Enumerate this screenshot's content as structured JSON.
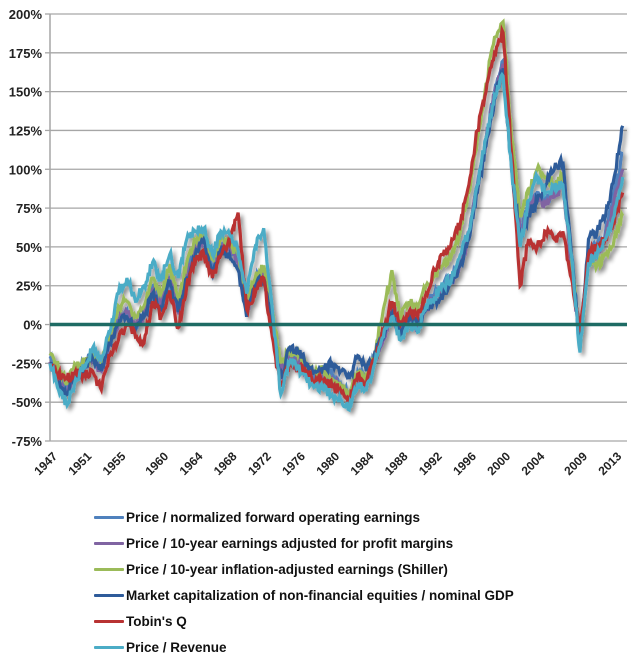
{
  "chart_data": {
    "type": "line",
    "title": "",
    "xlabel": "",
    "ylabel": "",
    "ylim": [
      -75,
      200
    ],
    "xlim": [
      1947,
      2014.5
    ],
    "grid": true,
    "legend_position": "bottom",
    "y_ticks": [
      -75,
      -50,
      -25,
      0,
      25,
      50,
      75,
      100,
      125,
      150,
      175,
      200
    ],
    "y_tick_labels": [
      "-75%",
      "-50%",
      "-25%",
      "0%",
      "25%",
      "50%",
      "75%",
      "100%",
      "125%",
      "150%",
      "175%",
      "200%"
    ],
    "x_tick_labels": [
      "1947",
      "1951",
      "1955",
      "1960",
      "1964",
      "1968",
      "1972",
      "1976",
      "1980",
      "1984",
      "1988",
      "1992",
      "1996",
      "2000",
      "2004",
      "2009",
      "2013"
    ],
    "x_tick_values": [
      1947,
      1951,
      1955,
      1960,
      1964,
      1968,
      1972,
      1976,
      1980,
      1984,
      1988,
      1992,
      1996,
      2000,
      2004,
      2009,
      2013
    ],
    "reference_line": {
      "y": 0,
      "color": "#1E6B64"
    },
    "x": [
      1947,
      1948,
      1949,
      1950,
      1951,
      1952,
      1953,
      1954,
      1955,
      1956,
      1957,
      1958,
      1959,
      1960,
      1961,
      1962,
      1963,
      1964,
      1965,
      1966,
      1967,
      1968,
      1969,
      1970,
      1971,
      1972,
      1973,
      1974,
      1975,
      1976,
      1977,
      1978,
      1979,
      1980,
      1981,
      1982,
      1983,
      1984,
      1985,
      1986,
      1987,
      1988,
      1989,
      1990,
      1991,
      1992,
      1993,
      1994,
      1995,
      1996,
      1997,
      1998,
      1999,
      2000,
      2001,
      2002,
      2003,
      2004,
      2005,
      2006,
      2007,
      2008,
      2009,
      2010,
      2011,
      2012,
      2013,
      2014
    ],
    "series": [
      {
        "name": "Price / normalized forward operating earnings",
        "color": "#4F81BD",
        "values": [
          -22,
          -35,
          -42,
          -30,
          -26,
          -20,
          -28,
          -10,
          5,
          10,
          0,
          8,
          25,
          15,
          30,
          10,
          35,
          50,
          58,
          35,
          52,
          50,
          40,
          10,
          28,
          35,
          5,
          -30,
          -20,
          -22,
          -28,
          -35,
          -30,
          -32,
          -38,
          -45,
          -30,
          -35,
          -20,
          -5,
          10,
          -5,
          5,
          0,
          12,
          20,
          25,
          30,
          40,
          60,
          90,
          120,
          150,
          170,
          110,
          60,
          75,
          85,
          80,
          85,
          95,
          40,
          -10,
          45,
          50,
          60,
          85,
          110
        ]
      },
      {
        "name": "Price / 10-year earnings adjusted for profit margins",
        "color": "#8064A2",
        "values": [
          -24,
          -36,
          -44,
          -32,
          -27,
          -22,
          -30,
          -12,
          2,
          8,
          -2,
          5,
          22,
          12,
          28,
          8,
          32,
          48,
          55,
          33,
          50,
          48,
          38,
          8,
          25,
          32,
          2,
          -32,
          -22,
          -24,
          -30,
          -38,
          -33,
          -35,
          -40,
          -48,
          -33,
          -38,
          -22,
          -8,
          8,
          -8,
          2,
          -2,
          10,
          18,
          22,
          28,
          38,
          58,
          88,
          118,
          148,
          168,
          108,
          58,
          72,
          82,
          78,
          82,
          92,
          38,
          -12,
          42,
          48,
          56,
          80,
          100
        ]
      },
      {
        "name": "Price / 10-year inflation-adjusted earnings (Shiller)",
        "color": "#9BBB59",
        "values": [
          -20,
          -28,
          -38,
          -26,
          -24,
          -20,
          -25,
          -8,
          12,
          15,
          5,
          12,
          30,
          20,
          38,
          15,
          40,
          55,
          60,
          42,
          55,
          52,
          45,
          15,
          30,
          38,
          8,
          -25,
          -18,
          -20,
          -26,
          -32,
          -30,
          -35,
          -40,
          -44,
          -30,
          -36,
          -18,
          10,
          35,
          5,
          15,
          10,
          25,
          32,
          38,
          45,
          60,
          85,
          120,
          155,
          185,
          195,
          120,
          70,
          85,
          100,
          95,
          90,
          98,
          45,
          -15,
          40,
          38,
          45,
          55,
          70
        ]
      },
      {
        "name": "Market capitalization of non-financial equities / nominal GDP",
        "color": "#2E5B9A",
        "values": [
          -25,
          -38,
          -45,
          -33,
          -28,
          -22,
          -30,
          -12,
          0,
          5,
          -3,
          5,
          20,
          10,
          28,
          8,
          30,
          45,
          55,
          32,
          48,
          45,
          35,
          5,
          25,
          30,
          0,
          -35,
          -15,
          -18,
          -25,
          -30,
          -28,
          -25,
          -30,
          -35,
          -20,
          -30,
          -18,
          -5,
          8,
          -5,
          5,
          0,
          10,
          15,
          20,
          28,
          38,
          55,
          85,
          115,
          145,
          165,
          100,
          55,
          70,
          80,
          90,
          100,
          105,
          45,
          -12,
          55,
          60,
          70,
          95,
          128
        ]
      },
      {
        "name": "Tobin's Q",
        "color": "#B83232",
        "values": [
          -28,
          -32,
          -35,
          -30,
          -32,
          -30,
          -42,
          -20,
          -10,
          0,
          -8,
          -12,
          15,
          5,
          22,
          -2,
          25,
          40,
          45,
          30,
          45,
          52,
          72,
          10,
          20,
          30,
          -8,
          -40,
          -25,
          -28,
          -30,
          -38,
          -36,
          -40,
          -42,
          -48,
          -32,
          -38,
          -22,
          -5,
          15,
          0,
          8,
          5,
          20,
          35,
          45,
          55,
          65,
          90,
          125,
          150,
          175,
          188,
          110,
          25,
          55,
          50,
          60,
          55,
          60,
          30,
          -5,
          45,
          50,
          55,
          65,
          85
        ]
      },
      {
        "name": "Price / Revenue",
        "color": "#4BACC6",
        "values": [
          -25,
          -42,
          -52,
          -35,
          -28,
          -15,
          -22,
          -5,
          20,
          30,
          15,
          25,
          40,
          28,
          45,
          30,
          55,
          60,
          62,
          45,
          60,
          58,
          48,
          20,
          50,
          62,
          10,
          -45,
          -25,
          -28,
          -35,
          -40,
          -42,
          -45,
          -48,
          -55,
          -38,
          -42,
          -25,
          -8,
          5,
          -10,
          0,
          -5,
          12,
          18,
          25,
          30,
          45,
          60,
          90,
          120,
          148,
          160,
          100,
          50,
          80,
          95,
          85,
          88,
          90,
          45,
          -18,
          40,
          45,
          55,
          70,
          95
        ]
      }
    ]
  }
}
